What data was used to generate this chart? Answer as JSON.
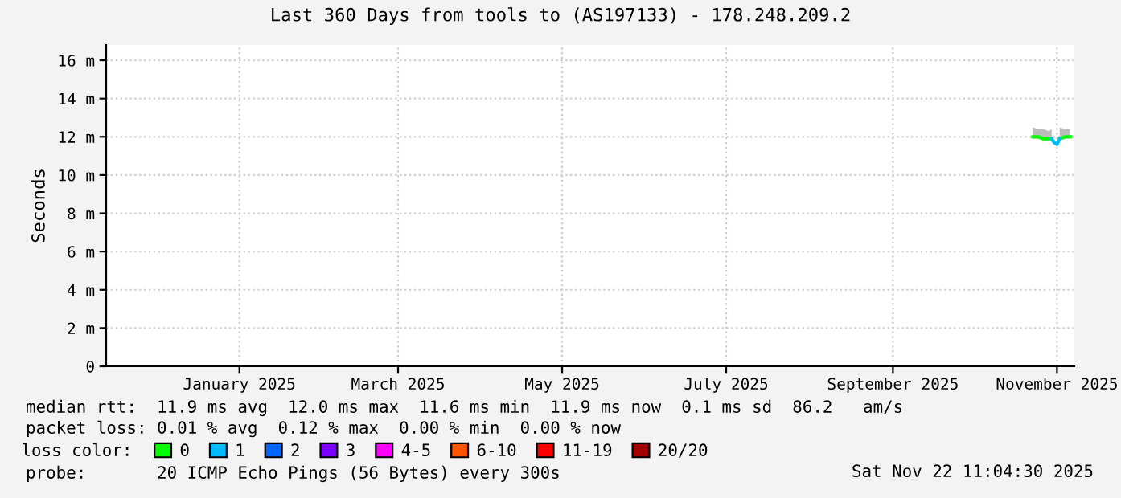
{
  "chart_data": {
    "type": "line",
    "title": "Last 360 Days from tools to (AS197133) - 178.248.209.2",
    "ylabel": "Seconds",
    "legend_title": "loss color:",
    "legend": "bottom",
    "grid": true,
    "marker": "none",
    "line_style": "solid",
    "xlim": [
      "2024-11-27T11:00",
      "2025-11-22T11:00"
    ],
    "xticks": [
      {
        "value": "2025-01-16",
        "label": "January 2025"
      },
      {
        "value": "2025-03-16",
        "label": "March 2025"
      },
      {
        "value": "2025-05-16",
        "label": "May 2025"
      },
      {
        "value": "2025-07-16",
        "label": "July 2025"
      },
      {
        "value": "2025-09-16",
        "label": "September 2025"
      },
      {
        "value": "2025-11-16",
        "label": "November 2025"
      }
    ],
    "ylim": [
      0,
      16.8
    ],
    "yticks": [
      0,
      {
        "value": 2,
        "label": "2 m"
      },
      {
        "value": 4,
        "label": "4 m"
      },
      {
        "value": 6,
        "label": "6 m"
      },
      {
        "value": 8,
        "label": "8 m"
      },
      {
        "value": 10,
        "label": "10 m"
      },
      {
        "value": 12,
        "label": "12 m"
      },
      {
        "value": 14,
        "label": "14 m"
      },
      {
        "value": 16,
        "label": "16 m"
      }
    ],
    "x": [
      "2025-11-07",
      "2025-11-09",
      "2025-11-11",
      "2025-11-13",
      "2025-11-14",
      "2025-11-15",
      "2025-11-16",
      "2025-11-17",
      "2025-11-19",
      "2025-11-21"
    ],
    "series": [
      {
        "name": "0",
        "color": "#00ff00",
        "values": [
          12.0,
          12.0,
          11.9,
          11.9,
          11.9,
          null,
          null,
          11.9,
          12.0,
          12.0
        ],
        "lower": [
          11.9,
          11.9,
          11.8,
          11.8,
          11.8,
          null,
          null,
          11.8,
          11.9,
          11.9
        ],
        "upper": [
          12.5,
          12.4,
          12.4,
          12.3,
          12.4,
          null,
          null,
          12.5,
          12.4,
          12.4
        ]
      },
      {
        "name": "1",
        "color": "#00bbff",
        "values": [
          null,
          null,
          null,
          null,
          11.9,
          11.7,
          11.6,
          11.9,
          null,
          null
        ]
      },
      {
        "name": "2",
        "color": "#0066ff",
        "values": [
          null,
          null,
          null,
          null,
          null,
          null,
          null,
          null,
          null,
          null
        ]
      },
      {
        "name": "3",
        "color": "#7a00ff",
        "values": [
          null,
          null,
          null,
          null,
          null,
          null,
          null,
          null,
          null,
          null
        ]
      },
      {
        "name": "4-5",
        "color": "#ff00ff",
        "values": [
          null,
          null,
          null,
          null,
          null,
          null,
          null,
          null,
          null,
          null
        ]
      },
      {
        "name": "6-10",
        "color": "#ff5500",
        "values": [
          null,
          null,
          null,
          null,
          null,
          null,
          null,
          null,
          null,
          null
        ]
      },
      {
        "name": "11-19",
        "color": "#ff0000",
        "values": [
          null,
          null,
          null,
          null,
          null,
          null,
          null,
          null,
          null,
          null
        ]
      },
      {
        "name": "20/20",
        "color": "#a10000",
        "values": [
          null,
          null,
          null,
          null,
          null,
          null,
          null,
          null,
          null,
          null
        ]
      }
    ],
    "annotations": [
      "median rtt:  11.9 ms avg  12.0 ms max  11.6 ms min  11.9 ms now  0.1 ms sd  86.2   am/s",
      "packet loss: 0.01 % avg  0.12 % max  0.00 % min  0.00 % now",
      "probe:       20 ICMP Echo Pings (56 Bytes) every 300s",
      "Sat Nov 22 11:04:30 2025"
    ]
  }
}
